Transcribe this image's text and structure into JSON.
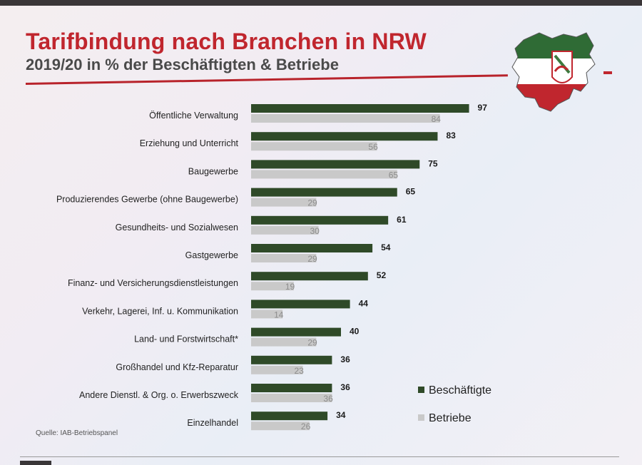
{
  "header": {
    "title": "Tarifbindung nach Branchen in NRW",
    "subtitle": "2019/20 in % der Beschäftigten & Betriebe"
  },
  "colors": {
    "accent_red": "#c0262e",
    "series_dark": "#2f4a28",
    "series_light": "#c9c9c9"
  },
  "chart_data": {
    "type": "bar",
    "orientation": "horizontal",
    "title": "Tarifbindung nach Branchen in NRW",
    "subtitle": "2019/20 in % der Beschäftigten & Betriebe",
    "xlim": [
      0,
      100
    ],
    "grid": false,
    "legend_position": "bottom-right",
    "categories": [
      "Öffentliche Verwaltung",
      "Erziehung und Unterricht",
      "Baugewerbe",
      "Produzierendes Gewerbe (ohne Baugewerbe)",
      "Gesundheits- und Sozialwesen",
      "Gastgewerbe",
      "Finanz- und Versicherungsdienstleistungen",
      "Verkehr, Lagerei, Inf. u. Kommunikation",
      "Land- und Forstwirtschaft*",
      "Großhandel und Kfz-Reparatur",
      "Andere Dienstl. & Org. o. Erwerbszweck",
      "Einzelhandel"
    ],
    "series": [
      {
        "name": "Beschäftigte",
        "color": "#2f4a28",
        "values": [
          97,
          83,
          75,
          65,
          61,
          54,
          52,
          44,
          40,
          36,
          36,
          34
        ]
      },
      {
        "name": "Betriebe",
        "color": "#c9c9c9",
        "values": [
          84,
          56,
          65,
          29,
          30,
          29,
          19,
          14,
          29,
          23,
          36,
          26
        ]
      }
    ]
  },
  "source": "Quelle: IAB-Betriebspanel"
}
